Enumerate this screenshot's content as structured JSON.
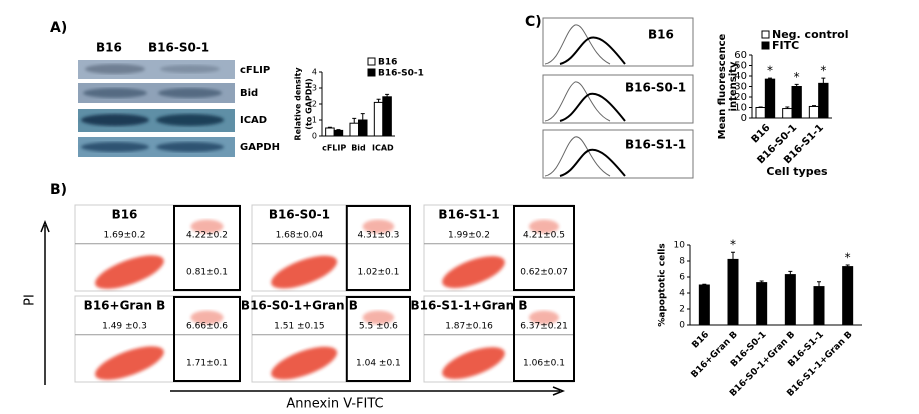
{
  "panels": {
    "a_label": "A)",
    "b_label": "B)",
    "c_label": "C)",
    "blot": {
      "columns": [
        "B16",
        "B16-S0-1"
      ],
      "rows": [
        "cFLIP",
        "Bid",
        "ICAD",
        "GAPDH"
      ]
    },
    "histograms": [
      "B16",
      "B16-S0-1",
      "B16-S1-1"
    ],
    "flow_plots": [
      {
        "title": "B16",
        "upper_left": "1.69±0.2",
        "upper_right": "4.22±0.2",
        "lower_right": "0.81±0.1"
      },
      {
        "title": "B16-S0-1",
        "upper_left": "1.68±0.04",
        "upper_right": "4.31±0.3",
        "lower_right": "1.02±0.1"
      },
      {
        "title": "B16-S1-1",
        "upper_left": "1.99±0.2",
        "upper_right": "4.21±0.5",
        "lower_right": "0.62±0.07"
      },
      {
        "title": "B16+Gran B",
        "upper_left": "1.49 ±0.3",
        "upper_right": "6.66±0.6",
        "lower_right": "1.71±0.1"
      },
      {
        "title": "B16-S0-1+Gran B",
        "upper_left": "1.51 ±0.15",
        "upper_right": "5.5 ±0.6",
        "lower_right": "1.04 ±0.1"
      },
      {
        "title": "B16-S1-1+Gran B",
        "upper_left": "1.87±0.16",
        "upper_right": "6.37±0.21",
        "lower_right": "1.06±0.1"
      }
    ],
    "flow_y_label": "PI",
    "flow_x_label": "Annexin V-FITC"
  },
  "chart_data": [
    {
      "type": "bar",
      "ylabel": [
        "Relative density",
        "(to GAPDH)"
      ],
      "categories": [
        "cFLIP",
        "Bid",
        "ICAD"
      ],
      "series": [
        {
          "name": "B16",
          "color": "#ffffff",
          "values": [
            0.5,
            0.8,
            2.1
          ],
          "errors": [
            0.05,
            0.3,
            0.2
          ]
        },
        {
          "name": "B16-S0-1",
          "color": "#000000",
          "values": [
            0.35,
            1.0,
            2.45
          ],
          "errors": [
            0.05,
            0.4,
            0.15
          ]
        }
      ],
      "ylim": [
        0,
        4
      ],
      "yticks": [
        0,
        1,
        2,
        3,
        4
      ]
    },
    {
      "type": "bar",
      "ylabel": [
        "Mean fluorescence",
        "intensity"
      ],
      "xlabel": "Cell types",
      "categories": [
        "B16",
        "B16-S0-1",
        "B16-S1-1"
      ],
      "series": [
        {
          "name": "Neg. control",
          "color": "#ffffff",
          "values": [
            10,
            9,
            11
          ],
          "errors": [
            0.5,
            1.5,
            0.8
          ]
        },
        {
          "name": "FITC",
          "color": "#000000",
          "values": [
            37,
            30,
            33
          ],
          "errors": [
            1,
            2,
            5
          ],
          "significance": [
            "*",
            "*",
            "*"
          ]
        }
      ],
      "ylim": [
        0,
        60
      ],
      "yticks": [
        0,
        10,
        20,
        30,
        40,
        50,
        60
      ]
    },
    {
      "type": "bar",
      "ylabel": [
        "%apoptotic cells"
      ],
      "categories": [
        "B16",
        "B16+Gran B",
        "B16-S0-1",
        "B16-S0-1+Gran B",
        "B16-S1-1",
        "B16-S1-1+Gran B"
      ],
      "values": [
        5,
        8.2,
        5.3,
        6.3,
        4.8,
        7.3
      ],
      "errors": [
        0.1,
        0.9,
        0.2,
        0.4,
        0.6,
        0.2
      ],
      "significance": [
        null,
        "*",
        null,
        null,
        null,
        "*"
      ],
      "color": "#000000",
      "ylim": [
        0,
        10
      ],
      "yticks": [
        0,
        2,
        4,
        6,
        8,
        10
      ]
    }
  ]
}
